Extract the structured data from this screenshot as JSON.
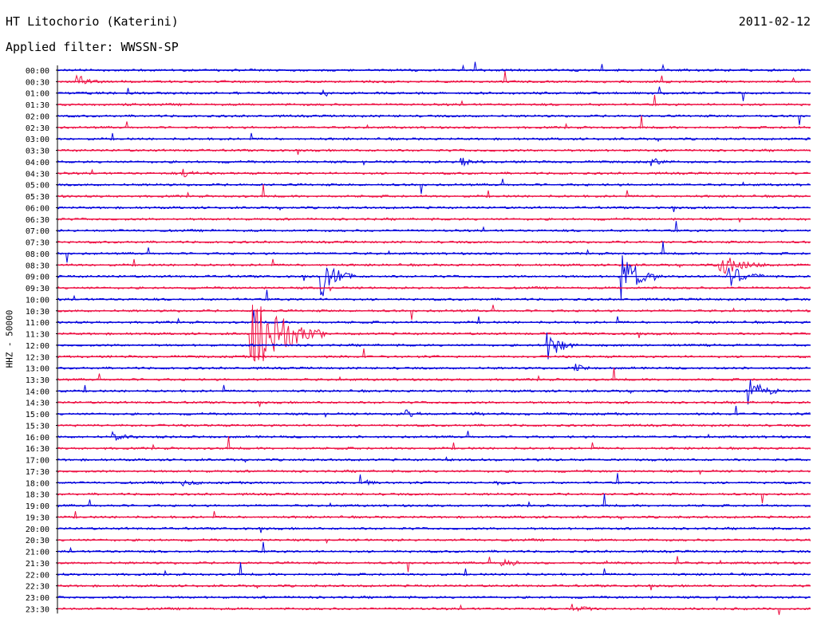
{
  "header": {
    "station": "HT Litochorio (Katerini)",
    "date": "2011-02-12",
    "filter_label": "Applied filter:",
    "filter_value": "WWSSN-SP",
    "side_label": "HHZ - 50000"
  },
  "colors": {
    "even_trace": "#0000dd",
    "odd_trace": "#ee1144",
    "axis": "#000000"
  },
  "chart_data": {
    "type": "line",
    "title": "HT Litochorio (Katerini)",
    "subtitle": "Applied filter: WWSSN-SP",
    "ylabel": "HHZ - 50000",
    "row_interval_minutes": 30,
    "x_range_minutes": [
      0,
      30
    ],
    "row_labels": [
      "00:00",
      "00:30",
      "01:00",
      "01:30",
      "02:00",
      "02:30",
      "03:00",
      "03:30",
      "04:00",
      "04:30",
      "05:00",
      "05:30",
      "06:00",
      "06:30",
      "07:00",
      "07:30",
      "08:00",
      "08:30",
      "09:00",
      "09:30",
      "10:00",
      "10:30",
      "11:00",
      "11:30",
      "12:00",
      "12:30",
      "13:00",
      "13:30",
      "14:00",
      "14:30",
      "15:00",
      "15:30",
      "16:00",
      "16:30",
      "17:00",
      "17:30",
      "18:00",
      "18:30",
      "19:00",
      "19:30",
      "20:00",
      "20:30",
      "21:00",
      "21:30",
      "22:00",
      "22:30",
      "23:00",
      "23:30"
    ],
    "events": [
      {
        "row": "00:30",
        "minute": 0.8,
        "amp": 0.6,
        "dur": 1.0
      },
      {
        "row": "01:00",
        "minute": 10.5,
        "amp": 0.7,
        "dur": 0.5
      },
      {
        "row": "04:00",
        "minute": 16.1,
        "amp": 0.5,
        "dur": 1.0
      },
      {
        "row": "04:00",
        "minute": 23.6,
        "amp": 0.5,
        "dur": 0.8
      },
      {
        "row": "04:30",
        "minute": 5.0,
        "amp": 0.45,
        "dur": 1.0
      },
      {
        "row": "09:00",
        "minute": 10.5,
        "amp": 2.2,
        "dur": 1.4
      },
      {
        "row": "09:00",
        "minute": 22.5,
        "amp": 2.4,
        "dur": 1.6
      },
      {
        "row": "08:30",
        "minute": 26.4,
        "amp": 1.4,
        "dur": 1.8
      },
      {
        "row": "09:00",
        "minute": 26.7,
        "amp": 1.1,
        "dur": 1.6
      },
      {
        "row": "11:30",
        "minute": 7.7,
        "amp": 4.8,
        "dur": 3.0
      },
      {
        "row": "12:00",
        "minute": 19.5,
        "amp": 1.6,
        "dur": 1.2
      },
      {
        "row": "13:00",
        "minute": 20.6,
        "amp": 0.5,
        "dur": 0.6
      },
      {
        "row": "14:00",
        "minute": 27.5,
        "amp": 1.8,
        "dur": 1.2
      },
      {
        "row": "15:00",
        "minute": 13.9,
        "amp": 0.4,
        "dur": 0.8
      },
      {
        "row": "15:00",
        "minute": 16.5,
        "amp": 0.3,
        "dur": 0.6
      },
      {
        "row": "16:00",
        "minute": 2.2,
        "amp": 0.35,
        "dur": 1.0
      },
      {
        "row": "17:00",
        "minute": 15.4,
        "amp": 0.3,
        "dur": 0.6
      },
      {
        "row": "18:00",
        "minute": 5.0,
        "amp": 0.3,
        "dur": 1.0
      },
      {
        "row": "18:00",
        "minute": 12.3,
        "amp": 0.3,
        "dur": 0.5
      },
      {
        "row": "18:00",
        "minute": 17.4,
        "amp": 0.3,
        "dur": 0.6
      },
      {
        "row": "21:30",
        "minute": 17.7,
        "amp": 0.5,
        "dur": 1.0
      },
      {
        "row": "23:30",
        "minute": 20.5,
        "amp": 0.4,
        "dur": 1.0
      }
    ]
  }
}
